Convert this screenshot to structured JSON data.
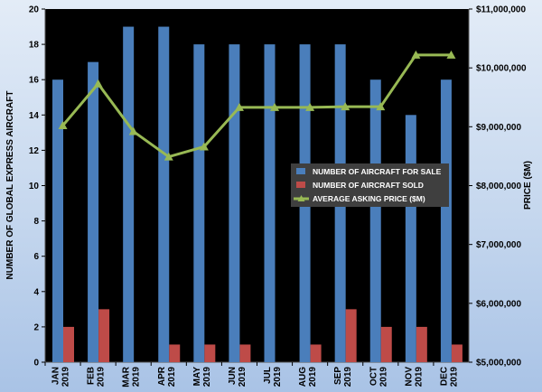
{
  "chart_data": {
    "type": "bar",
    "categories": [
      [
        "JAN",
        "2019"
      ],
      [
        "FEB",
        "2019"
      ],
      [
        "MAR",
        "2019"
      ],
      [
        "APR",
        "2019"
      ],
      [
        "MAY",
        "2019"
      ],
      [
        "JUN",
        "2019"
      ],
      [
        "JUL",
        "2019"
      ],
      [
        "AUG",
        "2019"
      ],
      [
        "SEP",
        "2019"
      ],
      [
        "OCT",
        "2019"
      ],
      [
        "NOV",
        "2019"
      ],
      [
        "DEC",
        "2019"
      ]
    ],
    "ylabel": "NUMBER OF GLOBAL EXPRESS AIRCRAFT",
    "y2label": "PRICE ($M)",
    "ylim": [
      0,
      20
    ],
    "yticks": [
      0,
      2,
      4,
      6,
      8,
      10,
      12,
      14,
      16,
      18,
      20
    ],
    "y2lim": [
      5000000,
      11000000
    ],
    "y2ticks": [
      5000000,
      6000000,
      7000000,
      8000000,
      9000000,
      10000000,
      11000000
    ],
    "y2tick_labels": [
      "$5,000,000",
      "$6,000,000",
      "$7,000,000",
      "$8,000,000",
      "$9,000,000",
      "$10,000,000",
      "$11,000,000"
    ],
    "grid": false,
    "legend_position": "center-right",
    "series": [
      {
        "name": "NUMBER OF AIRCRAFT FOR SALE",
        "type": "bar",
        "axis": "left",
        "color": "#4a7ebb",
        "values": [
          16,
          17,
          19,
          19,
          18,
          18,
          18,
          18,
          18,
          16,
          14,
          16
        ]
      },
      {
        "name": "NUMBER OF AIRCRAFT SOLD",
        "type": "bar",
        "axis": "left",
        "color": "#be4b48",
        "values": [
          2,
          3,
          0,
          1,
          1,
          1,
          0,
          1,
          3,
          2,
          2,
          1
        ]
      },
      {
        "name": "AVERAGE ASKING PRICE ($M)",
        "type": "line",
        "axis": "right",
        "color": "#98b954",
        "values": [
          9020000,
          9730000,
          8920000,
          8490000,
          8660000,
          9330000,
          9330000,
          9330000,
          9340000,
          9340000,
          10220000,
          10220000
        ]
      }
    ]
  }
}
